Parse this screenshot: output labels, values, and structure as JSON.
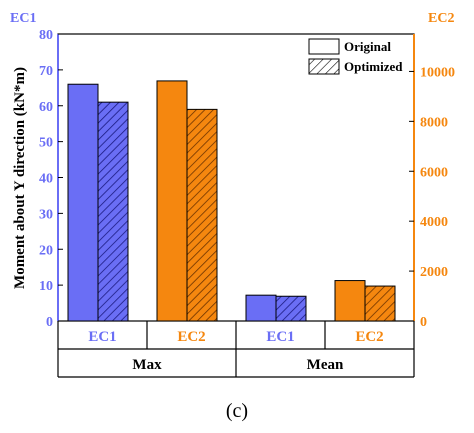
{
  "chart_data": {
    "type": "bar",
    "caption": "(c)",
    "ylabel": "Moment about Y direction (kN*m)",
    "left_axis": {
      "name": "EC1",
      "color": "#6a6ef5",
      "ylim": [
        0,
        80
      ],
      "ticks": [
        0,
        10,
        20,
        30,
        40,
        50,
        60,
        70,
        80
      ]
    },
    "right_axis": {
      "name": "EC2",
      "color": "#f5870f",
      "ylim": [
        0,
        11500
      ],
      "ticks": [
        0,
        2000,
        4000,
        6000,
        8000,
        10000
      ]
    },
    "groups": [
      {
        "label": "Max",
        "categories": [
          {
            "label": "EC1",
            "axis": "left",
            "original": 66,
            "optimized": 61
          },
          {
            "label": "EC2",
            "axis": "right",
            "original": 9620,
            "optimized": 8480
          }
        ]
      },
      {
        "label": "Mean",
        "categories": [
          {
            "label": "EC1",
            "axis": "left",
            "original": 7.2,
            "optimized": 6.9
          },
          {
            "label": "EC2",
            "axis": "right",
            "original": 1620,
            "optimized": 1400
          }
        ]
      }
    ],
    "legend": {
      "position": "top-right",
      "entries": [
        "Original",
        "Optimized"
      ]
    },
    "grid": false
  }
}
